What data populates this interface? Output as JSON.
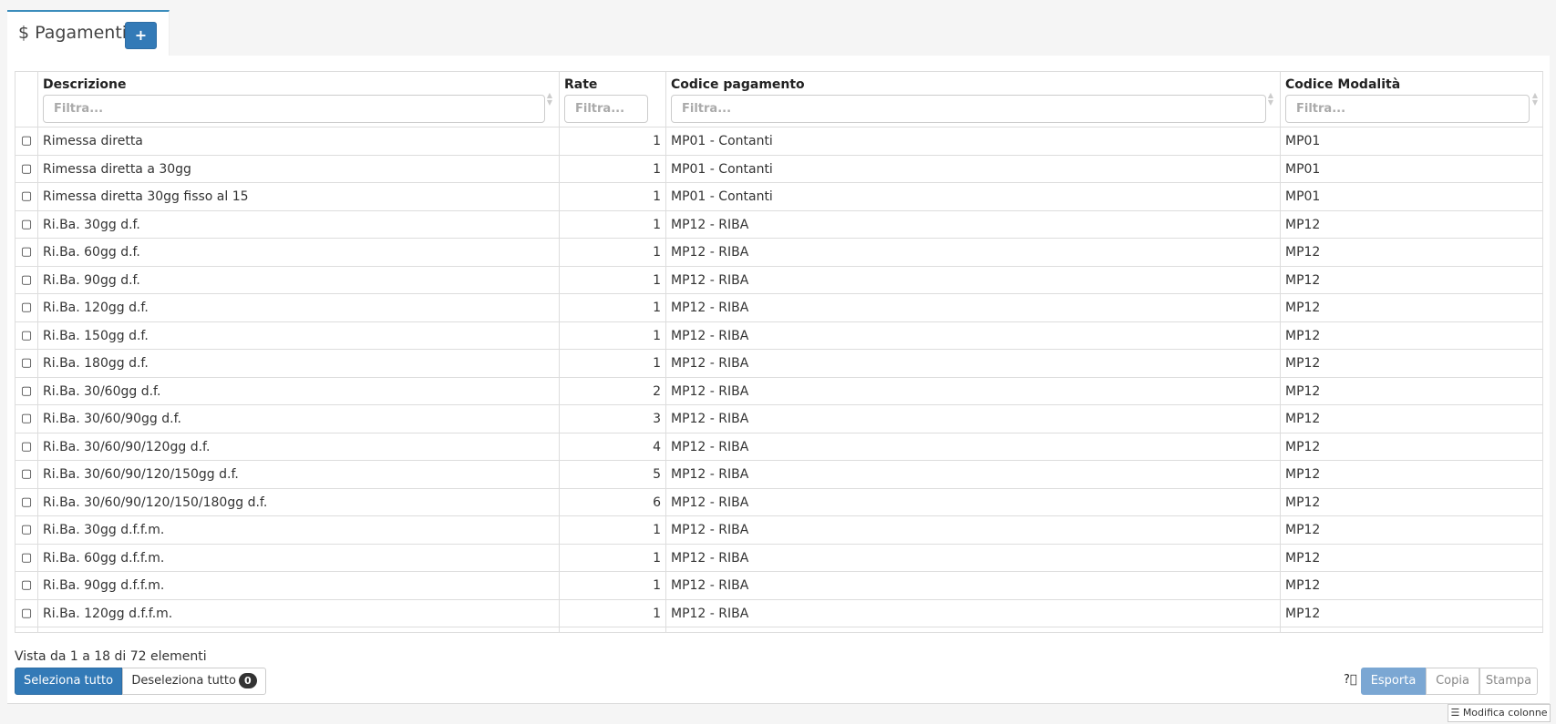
{
  "header": {
    "title": "Pagamenti",
    "title_icon": "dollar-icon",
    "add_label": "+"
  },
  "columns": [
    {
      "label": "Descrizione",
      "placeholder": "Filtra..."
    },
    {
      "label": "Rate",
      "placeholder": "Filtra..."
    },
    {
      "label": "Codice pagamento",
      "placeholder": "Filtra..."
    },
    {
      "label": "Codice Modalità",
      "placeholder": "Filtra..."
    }
  ],
  "rows": [
    [
      "Rimessa diretta",
      "1",
      "MP01 - Contanti",
      "MP01"
    ],
    [
      "Rimessa diretta a 30gg",
      "1",
      "MP01 - Contanti",
      "MP01"
    ],
    [
      "Rimessa diretta 30gg fisso al 15",
      "1",
      "MP01 - Contanti",
      "MP01"
    ],
    [
      "Ri.Ba. 30gg d.f.",
      "1",
      "MP12 - RIBA",
      "MP12"
    ],
    [
      "Ri.Ba. 60gg d.f.",
      "1",
      "MP12 - RIBA",
      "MP12"
    ],
    [
      "Ri.Ba. 90gg d.f.",
      "1",
      "MP12 - RIBA",
      "MP12"
    ],
    [
      "Ri.Ba. 120gg d.f.",
      "1",
      "MP12 - RIBA",
      "MP12"
    ],
    [
      "Ri.Ba. 150gg d.f.",
      "1",
      "MP12 - RIBA",
      "MP12"
    ],
    [
      "Ri.Ba. 180gg d.f.",
      "1",
      "MP12 - RIBA",
      "MP12"
    ],
    [
      "Ri.Ba. 30/60gg d.f.",
      "2",
      "MP12 - RIBA",
      "MP12"
    ],
    [
      "Ri.Ba. 30/60/90gg d.f.",
      "3",
      "MP12 - RIBA",
      "MP12"
    ],
    [
      "Ri.Ba. 30/60/90/120gg d.f.",
      "4",
      "MP12 - RIBA",
      "MP12"
    ],
    [
      "Ri.Ba. 30/60/90/120/150gg d.f.",
      "5",
      "MP12 - RIBA",
      "MP12"
    ],
    [
      "Ri.Ba. 30/60/90/120/150/180gg d.f.",
      "6",
      "MP12 - RIBA",
      "MP12"
    ],
    [
      "Ri.Ba. 30gg d.f.f.m.",
      "1",
      "MP12 - RIBA",
      "MP12"
    ],
    [
      "Ri.Ba. 60gg d.f.f.m.",
      "1",
      "MP12 - RIBA",
      "MP12"
    ],
    [
      "Ri.Ba. 90gg d.f.f.m.",
      "1",
      "MP12 - RIBA",
      "MP12"
    ],
    [
      "Ri.Ba. 120gg d.f.f.m.",
      "1",
      "MP12 - RIBA",
      "MP12"
    ]
  ],
  "footer": {
    "info": "Vista da 1 a 18 di 72 elementi",
    "select_all": "Seleziona tutto",
    "deselect_all": "Deseleziona tutto",
    "selected_count": "0",
    "export": "Esporta",
    "copy": "Copia",
    "print": "Stampa",
    "edit_columns": "Modifica colonne"
  },
  "colors": {
    "primary": "#337ab7",
    "export": "#7ba7d3"
  }
}
